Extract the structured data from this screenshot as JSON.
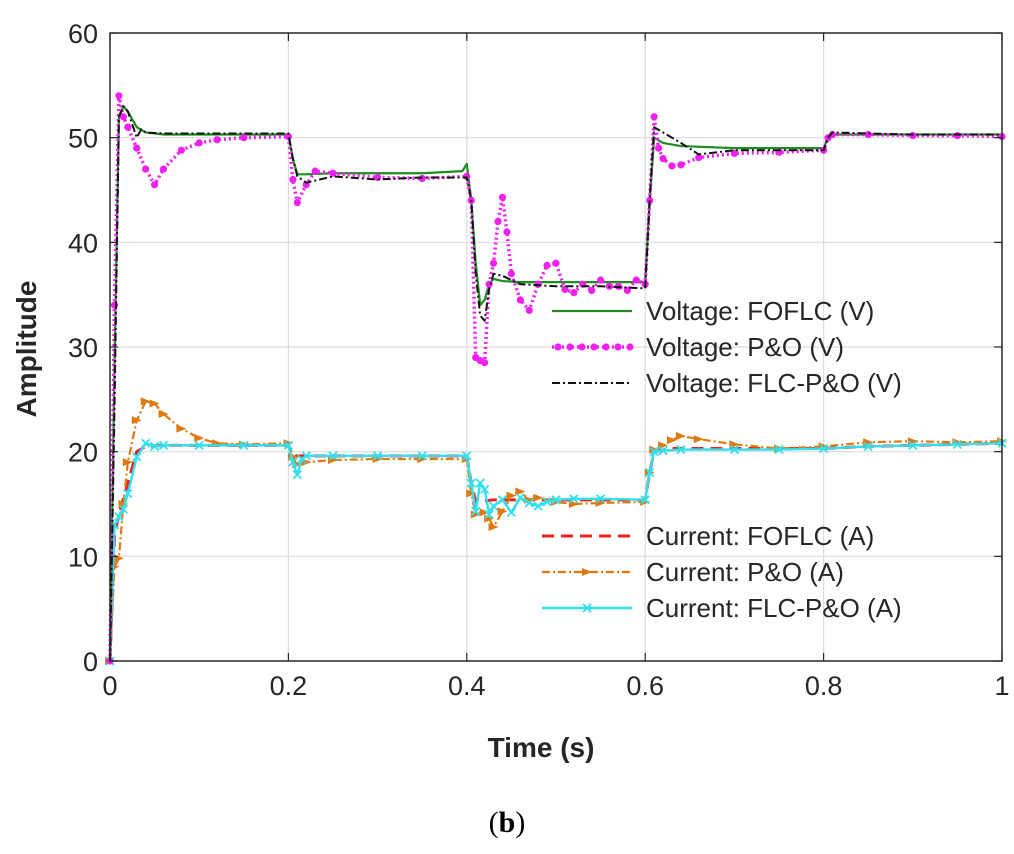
{
  "chart_data": {
    "type": "line",
    "title": "",
    "xlabel": "Time (s)",
    "ylabel": "Amplitude",
    "caption_letter": "b",
    "xlim": [
      0,
      1
    ],
    "ylim": [
      0,
      60
    ],
    "xticks": [
      0,
      0.2,
      0.4,
      0.6,
      0.8,
      1
    ],
    "xtick_labels": [
      "0",
      "0.2",
      "0.4",
      "0.6",
      "0.8",
      "1"
    ],
    "yticks": [
      0,
      10,
      20,
      30,
      40,
      50,
      60
    ],
    "ytick_labels": [
      "0",
      "10",
      "20",
      "30",
      "40",
      "50",
      "60"
    ],
    "grid": true,
    "legends": [
      {
        "placement": "center-right",
        "entries": [
          "Voltage: FOFLC (V)",
          "Voltage: P&O (V)",
          "Voltage: FLC-P&O (V)"
        ]
      },
      {
        "placement": "bottom-right",
        "entries": [
          "Current: FOFLC (A)",
          "Current: P&O (A)",
          "Current: FLC-P&O (A)"
        ]
      }
    ],
    "series": [
      {
        "name": "Voltage: FOFLC (V)",
        "color": "#1e8c1e",
        "style": "solid",
        "x": [
          0,
          0.005,
          0.01,
          0.015,
          0.02,
          0.03,
          0.04,
          0.06,
          0.1,
          0.15,
          0.2,
          0.205,
          0.21,
          0.22,
          0.25,
          0.3,
          0.35,
          0.395,
          0.4,
          0.405,
          0.41,
          0.415,
          0.42,
          0.425,
          0.43,
          0.44,
          0.46,
          0.5,
          0.55,
          0.6,
          0.605,
          0.61,
          0.62,
          0.64,
          0.7,
          0.75,
          0.8,
          0.805,
          0.81,
          0.85,
          0.9,
          0.95,
          1
        ],
        "y": [
          0,
          28,
          52,
          53,
          52.5,
          51,
          50.5,
          50.3,
          50.3,
          50.3,
          50.3,
          48,
          46.5,
          46.5,
          46.6,
          46.6,
          46.6,
          46.8,
          47.5,
          44,
          38,
          34,
          34.5,
          36,
          36.5,
          36.3,
          36.2,
          36.2,
          36.2,
          36.2,
          44,
          50,
          49.5,
          49.2,
          49.0,
          49.0,
          49.0,
          50,
          50.3,
          50.3,
          50.3,
          50.3,
          50.3
        ]
      },
      {
        "name": "Voltage: P&O (V)",
        "color": "#f020f0",
        "style": "dotted-marker",
        "x": [
          0,
          0.005,
          0.01,
          0.015,
          0.02,
          0.03,
          0.04,
          0.05,
          0.06,
          0.08,
          0.1,
          0.12,
          0.15,
          0.2,
          0.205,
          0.21,
          0.22,
          0.23,
          0.25,
          0.3,
          0.35,
          0.4,
          0.405,
          0.41,
          0.415,
          0.42,
          0.425,
          0.43,
          0.435,
          0.44,
          0.445,
          0.45,
          0.46,
          0.47,
          0.48,
          0.49,
          0.5,
          0.51,
          0.52,
          0.53,
          0.54,
          0.55,
          0.56,
          0.57,
          0.58,
          0.59,
          0.6,
          0.605,
          0.61,
          0.615,
          0.62,
          0.63,
          0.64,
          0.66,
          0.7,
          0.75,
          0.8,
          0.805,
          0.81,
          0.85,
          0.9,
          0.95,
          1
        ],
        "y": [
          0,
          34,
          54,
          52,
          51,
          49,
          47,
          45.5,
          47,
          48.8,
          49.5,
          49.8,
          50,
          50.1,
          46,
          43.8,
          45.5,
          46.8,
          46.6,
          46.2,
          46.1,
          46.3,
          44,
          29,
          28.7,
          28.5,
          36,
          38,
          42,
          44.3,
          41,
          37,
          34.5,
          33.5,
          36,
          37.8,
          38,
          35.5,
          35.2,
          36,
          35.4,
          36.4,
          35.8,
          35.8,
          35.4,
          36.4,
          36,
          44,
          52,
          49,
          48,
          47.3,
          47.4,
          48.1,
          48.5,
          48.6,
          48.8,
          50,
          50.3,
          50.3,
          50.2,
          50.2,
          50.1
        ]
      },
      {
        "name": "Voltage: FLC-P&O (V)",
        "color": "#111111",
        "style": "dashdot",
        "x": [
          0,
          0.005,
          0.01,
          0.015,
          0.02,
          0.03,
          0.035,
          0.04,
          0.06,
          0.1,
          0.15,
          0.2,
          0.205,
          0.21,
          0.22,
          0.25,
          0.3,
          0.35,
          0.4,
          0.405,
          0.41,
          0.415,
          0.42,
          0.425,
          0.43,
          0.44,
          0.46,
          0.5,
          0.55,
          0.6,
          0.605,
          0.61,
          0.62,
          0.64,
          0.66,
          0.7,
          0.75,
          0.8,
          0.805,
          0.81,
          0.85,
          0.9,
          0.95,
          1
        ],
        "y": [
          0,
          24,
          52,
          53,
          52.5,
          50,
          50.8,
          50.5,
          50.4,
          50.4,
          50.4,
          50.4,
          48,
          46.3,
          45.7,
          46.3,
          46.0,
          46.2,
          46.2,
          44,
          37,
          33,
          32.5,
          35.5,
          37,
          36.8,
          36.0,
          35.8,
          35.8,
          35.6,
          44,
          51,
          50.5,
          49.5,
          48.4,
          48.8,
          48.8,
          48.8,
          50,
          50.5,
          50.4,
          50.3,
          50.3,
          50.3
        ]
      },
      {
        "name": "Current: FOFLC (A)",
        "color": "#ee2020",
        "style": "dashed",
        "x": [
          0,
          0.005,
          0.01,
          0.02,
          0.03,
          0.04,
          0.06,
          0.1,
          0.15,
          0.2,
          0.205,
          0.21,
          0.25,
          0.3,
          0.35,
          0.4,
          0.405,
          0.41,
          0.42,
          0.43,
          0.44,
          0.46,
          0.5,
          0.55,
          0.6,
          0.605,
          0.61,
          0.63,
          0.7,
          0.75,
          0.8,
          0.85,
          0.9,
          0.95,
          1
        ],
        "y": [
          0,
          12,
          14,
          17,
          20,
          20.5,
          20.6,
          20.6,
          20.6,
          20.6,
          19.5,
          19.6,
          19.6,
          19.6,
          19.6,
          19.6,
          17,
          15.2,
          15.3,
          15.4,
          15.4,
          15.4,
          15.4,
          15.4,
          15.4,
          18,
          20,
          20.3,
          20.3,
          20.3,
          20.3,
          20.5,
          20.6,
          20.7,
          20.8
        ]
      },
      {
        "name": "Current: P&O (A)",
        "color": "#e07a10",
        "style": "dashdot-marker",
        "x": [
          0,
          0.005,
          0.01,
          0.015,
          0.02,
          0.03,
          0.04,
          0.05,
          0.06,
          0.08,
          0.1,
          0.12,
          0.15,
          0.2,
          0.205,
          0.21,
          0.22,
          0.25,
          0.3,
          0.35,
          0.4,
          0.405,
          0.41,
          0.42,
          0.425,
          0.43,
          0.44,
          0.45,
          0.46,
          0.47,
          0.48,
          0.5,
          0.52,
          0.55,
          0.6,
          0.605,
          0.61,
          0.62,
          0.63,
          0.64,
          0.66,
          0.7,
          0.75,
          0.8,
          0.85,
          0.9,
          0.95,
          1
        ],
        "y": [
          0,
          9,
          9.8,
          15,
          19,
          23,
          24.8,
          24.6,
          23.6,
          22.2,
          21.3,
          20.8,
          20.7,
          20.8,
          19.5,
          18.8,
          19,
          19.2,
          19.3,
          19.3,
          19.3,
          16,
          14,
          14.2,
          13.6,
          12.8,
          14.3,
          15.8,
          16.2,
          15.4,
          15.6,
          15.2,
          15,
          15.1,
          15.2,
          18,
          20.2,
          20.6,
          21.1,
          21.5,
          21.2,
          20.7,
          20.3,
          20.5,
          20.9,
          21.0,
          20.9,
          21.0
        ]
      },
      {
        "name": "Current: FLC-P&O (A)",
        "color": "#30e0f0",
        "style": "solid-marker",
        "x": [
          0,
          0.005,
          0.01,
          0.015,
          0.02,
          0.03,
          0.04,
          0.05,
          0.06,
          0.1,
          0.15,
          0.2,
          0.205,
          0.21,
          0.215,
          0.22,
          0.25,
          0.3,
          0.35,
          0.4,
          0.405,
          0.41,
          0.415,
          0.42,
          0.425,
          0.43,
          0.44,
          0.45,
          0.46,
          0.47,
          0.48,
          0.49,
          0.5,
          0.52,
          0.55,
          0.6,
          0.605,
          0.61,
          0.62,
          0.64,
          0.7,
          0.75,
          0.8,
          0.85,
          0.9,
          0.95,
          1
        ],
        "y": [
          0,
          13,
          13.8,
          14.5,
          16,
          19.5,
          20.8,
          20.5,
          20.6,
          20.6,
          20.6,
          20.6,
          19,
          17.8,
          19.3,
          19.6,
          19.6,
          19.6,
          19.6,
          19.6,
          17,
          14.3,
          17,
          16.4,
          14,
          14.8,
          15.4,
          14.2,
          15.6,
          15.1,
          14.8,
          15.2,
          15.4,
          15.5,
          15.5,
          15.4,
          18,
          20,
          20.1,
          20.2,
          20.2,
          20.2,
          20.3,
          20.5,
          20.6,
          20.7,
          20.8
        ]
      }
    ]
  }
}
